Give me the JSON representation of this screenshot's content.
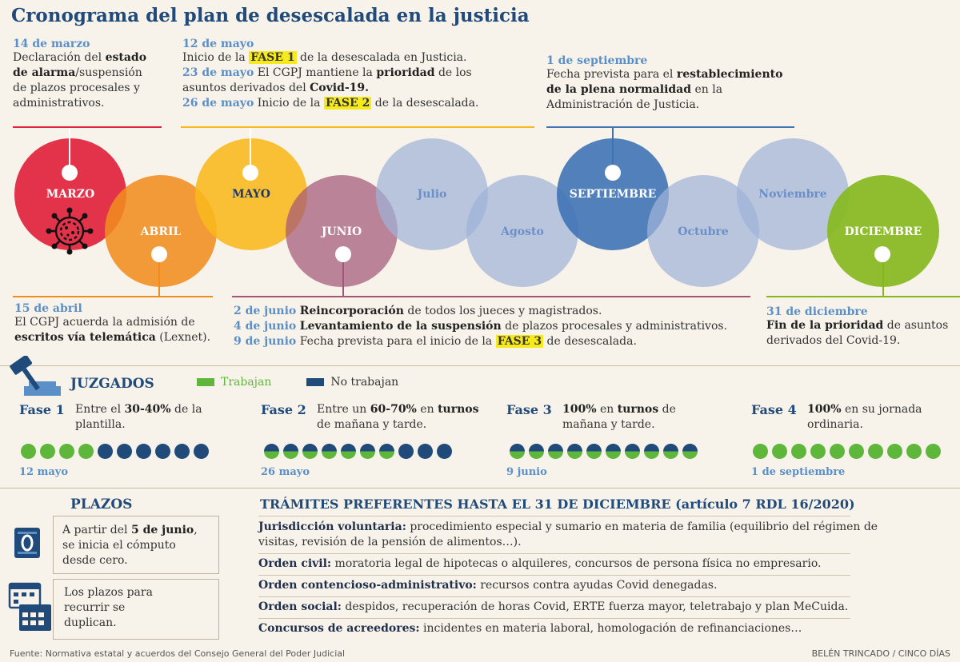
{
  "title": "Cronograma del plan de desescalada en la justicia",
  "colors": {
    "marzo": "#e0233c",
    "abril": "#f08c1f",
    "mayo": "#f9b81b",
    "junio": "#a35778",
    "pale": "#9fb3d8",
    "septiembre": "#3f73b5",
    "diciembre": "#86b81e",
    "navy": "#1f4a7a",
    "green": "#5eb63a",
    "highlight": "#f7ea1c"
  },
  "top_events": {
    "marzo": {
      "date": "14 de marzo",
      "l1a": "Declaración del ",
      "l1b": "estado",
      "l2a": "de alarma",
      "l2b": "/suspensión",
      "l3": "de plazos procesales y",
      "l4": "administrativos."
    },
    "mayo": {
      "date": "12 de mayo",
      "l1a": "Inicio de la ",
      "l1hl": "FASE 1",
      "l1b": " de la desescalada en Justicia.",
      "d2": "23 de mayo",
      "l2a": " El CGPJ mantiene la ",
      "l2b": "prioridad",
      "l2c": " de los",
      "l3a": "asuntos derivados del ",
      "l3b": "Covid-19.",
      "d4": "26 de mayo",
      "l4a": " Inicio de la ",
      "l4hl": "FASE 2",
      "l4b": " de la desescalada."
    },
    "septiembre": {
      "date": "1 de septiembre",
      "l1a": "Fecha prevista para el ",
      "l1b": "restablecimiento",
      "l2a": "de la plena normalidad",
      "l2b": " en la",
      "l3": "Administración de Justicia."
    }
  },
  "months": [
    "MARZO",
    "ABRIL",
    "MAYO",
    "JUNIO",
    "Julio",
    "Agosto",
    "SEPTIEMBRE",
    "Octubre",
    "Noviembre",
    "DICIEMBRE"
  ],
  "bottom_events": {
    "abril": {
      "date": "15 de abril",
      "l1": "El CGPJ acuerda la admisión de",
      "l2a": "escritos vía telemática",
      "l2b": " (Lexnet)."
    },
    "junio": {
      "d1": "2 de junio",
      "l1b": "Reincorporación",
      "l1c": " de todos los jueces y magistrados.",
      "d2": "4 de junio",
      "l2b": "Levantamiento de la suspensión",
      "l2c": " de plazos procesales y administrativos.",
      "d3": "9 de junio",
      "l3a": " Fecha prevista para el inicio de la ",
      "l3hl": "FASE 3",
      "l3c": " de desescalada."
    },
    "diciembre": {
      "date": "31 de diciembre",
      "l1a": "Fin de la prioridad",
      "l1b": " de asuntos",
      "l2": "derivados del Covid-19."
    }
  },
  "juzgados": {
    "heading": "JUZGADOS",
    "legend_work": "Trabajan",
    "legend_nowork": "No trabajan",
    "phases": [
      {
        "name": "Fase 1",
        "t1a": "Entre el ",
        "t1b": "30-40%",
        "t1c": " de la",
        "t2": "plantilla.",
        "date": "12 mayo",
        "dots": [
          "g",
          "g",
          "g",
          "g",
          "b",
          "b",
          "b",
          "b",
          "b",
          "b"
        ]
      },
      {
        "name": "Fase 2",
        "t1a": "Entre un ",
        "t1b": "60-70%",
        "t1c": " en ",
        "t1d": "turnos",
        "t2": "de mañana y tarde.",
        "date": "26 mayo",
        "dots": [
          "h",
          "h",
          "h",
          "h",
          "h",
          "h",
          "h",
          "b",
          "b",
          "b"
        ]
      },
      {
        "name": "Fase 3",
        "t1b": "100%",
        "t1c": " en ",
        "t1d": "turnos",
        "t1e": " de",
        "t2": "mañana y tarde.",
        "date": "9 junio",
        "dots": [
          "h",
          "h",
          "h",
          "h",
          "h",
          "h",
          "h",
          "h",
          "h",
          "h"
        ]
      },
      {
        "name": "Fase 4",
        "t1b": "100%",
        "t1c": " en su jornada",
        "t2": "ordinaria.",
        "date": "1 de septiembre",
        "dots": [
          "g",
          "g",
          "g",
          "g",
          "g",
          "g",
          "g",
          "g",
          "g",
          "g"
        ]
      }
    ]
  },
  "plazos": {
    "heading": "PLAZOS",
    "box1": {
      "l1a": "A partir del ",
      "l1b": "5 de junio",
      "l1c": ",",
      "l2": "se inicia el cómputo",
      "l3": "desde cero."
    },
    "box2": {
      "l1": "Los plazos para",
      "l2": "recurrir se",
      "l3": "duplican."
    }
  },
  "tramites": {
    "heading": "TRÁMITES PREFERENTES HASTA EL 31 DE DICIEMBRE (artículo 7 RDL 16/2020)",
    "items": [
      {
        "label": "Jurisdicción voluntaria:",
        "text": " procedimiento especial y sumario en materia de familia (equilibrio del régimen de",
        "text2": "visitas, revisión de la pensión de alimentos…)."
      },
      {
        "label": "Orden civil:",
        "text": " moratoria legal de hipotecas o alquileres, concursos de persona física no empresario."
      },
      {
        "label": "Orden contencioso-administrativo:",
        "text": " recursos contra ayudas Covid denegadas."
      },
      {
        "label": "Orden social:",
        "text": " despidos, recuperación de horas Covid, ERTE fuerza mayor, teletrabajo y plan MeCuida."
      },
      {
        "label": "Concursos de acreedores:",
        "text": " incidentes en materia laboral, homologación de refinanciaciones…"
      }
    ]
  },
  "footer": {
    "source": "Fuente: Normativa estatal y acuerdos del Consejo General del Poder Judicial",
    "credit": "BELÉN TRINCADO / CINCO DÍAS"
  }
}
